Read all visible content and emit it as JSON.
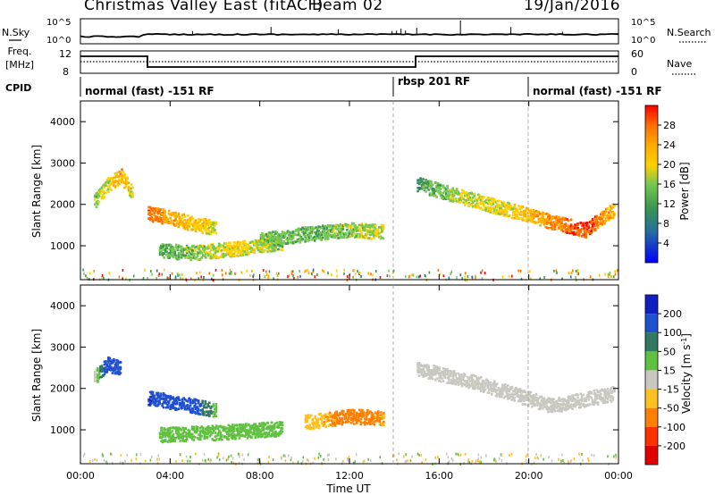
{
  "header": {
    "title": "Christmas Valley East (fitACF)",
    "beam": "Beam 02",
    "date": "19/Jan/2016"
  },
  "left_labels": {
    "nsky": "N.Sky",
    "freq": "Freq.",
    "freq_unit": "[MHz]",
    "cpid": "CPID"
  },
  "right_labels": {
    "nsearch": "N.Search",
    "nave": "Nave"
  },
  "noise_axis": {
    "ticks": [
      "10^5",
      "10^0"
    ],
    "right_ticks": [
      "10^5",
      "10^0"
    ]
  },
  "freq_axis": {
    "left_ticks": [
      "12",
      "8"
    ],
    "right_ticks": [
      "60",
      "0"
    ]
  },
  "cpid_segments": [
    {
      "label": "normal (fast) -151 RF",
      "start_hour": 0
    },
    {
      "label": "rbsp 201 RF",
      "start_hour": 14
    },
    {
      "label": "normal (fast) -151 RF",
      "start_hour": 20
    }
  ],
  "chart_data": [
    {
      "type": "heatmap",
      "title": "",
      "xlabel": "Time UT",
      "ylabel": "Slant Range [km]",
      "x_ticks": [
        "00:00",
        "04:00",
        "08:00",
        "12:00",
        "16:00",
        "20:00",
        "00:00"
      ],
      "xlim_hours": [
        0,
        24
      ],
      "ylim": [
        180,
        4500
      ],
      "y_ticks": [
        1000,
        2000,
        3000,
        4000
      ],
      "colorbar": {
        "label": "Power [dB]",
        "ticks": [
          "28",
          "24",
          "20",
          "16",
          "12",
          "8",
          "4"
        ],
        "colors": [
          "#ff0000",
          "#ff7000",
          "#ffaa00",
          "#ffd000",
          "#78c850",
          "#3c9650",
          "#286ea0",
          "#0000ff"
        ]
      },
      "bands": [
        {
          "name": "",
          "hours": [
            0.6,
            1.2,
            1.8,
            2.3
          ],
          "range_km": [
            2100,
            2500,
            2700,
            2300
          ],
          "power_db": [
            14,
            18,
            22,
            16
          ]
        },
        {
          "name": "",
          "hours": [
            3.0,
            4.0,
            5.0,
            6.0
          ],
          "range_km": [
            1800,
            1700,
            1550,
            1450
          ],
          "power_db": [
            26,
            22,
            20,
            16
          ]
        },
        {
          "name": "",
          "hours": [
            3.5,
            5.0,
            7.0,
            9.0
          ],
          "range_km": [
            900,
            850,
            950,
            1100
          ],
          "power_db": [
            12,
            14,
            18,
            14
          ]
        },
        {
          "name": "",
          "hours": [
            8.0,
            10.0,
            12.0,
            13.5
          ],
          "range_km": [
            1150,
            1300,
            1400,
            1350
          ],
          "power_db": [
            14,
            12,
            14,
            16
          ]
        },
        {
          "name": "",
          "hours": [
            15.0,
            17.0,
            19.0,
            21.0,
            22.5,
            23.8
          ],
          "range_km": [
            2500,
            2200,
            1900,
            1600,
            1400,
            1900
          ],
          "power_db": [
            10,
            16,
            18,
            24,
            28,
            20
          ]
        }
      ]
    },
    {
      "type": "heatmap",
      "title": "",
      "xlabel": "Time UT",
      "ylabel": "Slant Range [km]",
      "x_ticks": [
        "00:00",
        "04:00",
        "08:00",
        "12:00",
        "16:00",
        "20:00",
        "00:00"
      ],
      "xlim_hours": [
        0,
        24
      ],
      "ylim": [
        180,
        4500
      ],
      "y_ticks": [
        1000,
        2000,
        3000,
        4000
      ],
      "colorbar": {
        "label": "Velocity [m s^-1]",
        "ticks": [
          "200",
          "100",
          "50",
          "15",
          "-15",
          "-50",
          "-100",
          "-200"
        ],
        "colors": [
          "#1020c0",
          "#2050d0",
          "#307860",
          "#60c040",
          "#c8c8c0",
          "#ffc020",
          "#ff8000",
          "#ff3000",
          "#e00000"
        ]
      },
      "bands": [
        {
          "name": "",
          "hours": [
            0.6,
            1.2,
            1.8
          ],
          "range_km": [
            2300,
            2600,
            2500
          ],
          "velocity_ms": [
            -10,
            150,
            200
          ]
        },
        {
          "name": "",
          "hours": [
            3.0,
            4.5,
            6.0
          ],
          "range_km": [
            1800,
            1650,
            1500
          ],
          "velocity_ms": [
            200,
            180,
            40
          ]
        },
        {
          "name": "",
          "hours": [
            3.5,
            6.0,
            9.0
          ],
          "range_km": [
            900,
            950,
            1050
          ],
          "velocity_ms": [
            40,
            30,
            20
          ]
        },
        {
          "name": "",
          "hours": [
            10.0,
            12.0,
            13.5
          ],
          "range_km": [
            1200,
            1350,
            1300
          ],
          "velocity_ms": [
            -40,
            -60,
            -50
          ]
        },
        {
          "name": "",
          "hours": [
            15.0,
            18.0,
            21.0,
            23.8
          ],
          "range_km": [
            2500,
            2100,
            1600,
            1900
          ],
          "velocity_ms": [
            0,
            -5,
            5,
            0
          ]
        }
      ]
    }
  ]
}
